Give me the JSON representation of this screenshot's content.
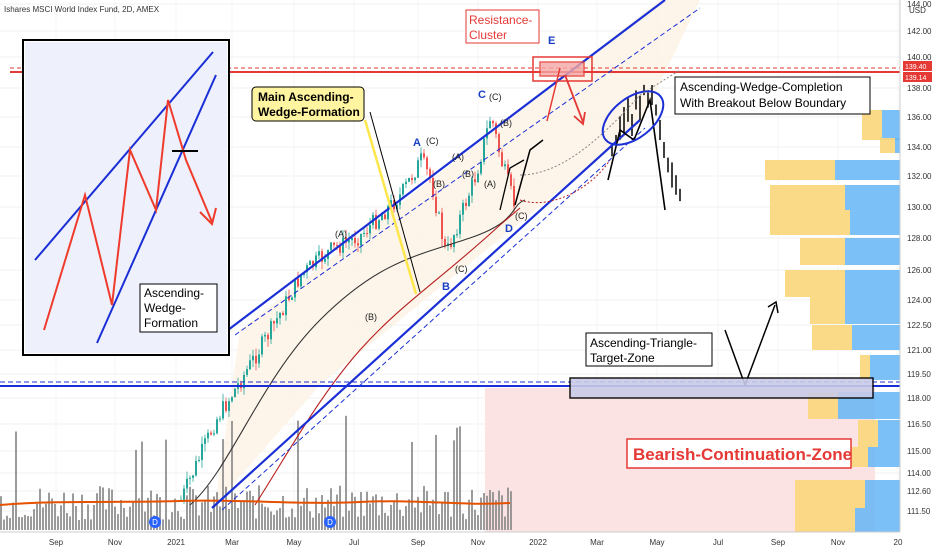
{
  "header": {
    "symbol_title": "Ishares MSCI World Index Fund, 2D, AMEX"
  },
  "colors": {
    "bull_candle": "#26a69a",
    "bear_candle": "#ef5350",
    "wedge_lines": "#1a2fd6",
    "resistance": "#e53935",
    "bearish_zone": "#fbe3e4",
    "target_zone": "#c9cbe8",
    "wedge_fill": "#fdf3e6",
    "annotation_red": "#e53935"
  },
  "chart_data": {
    "type": "candlestick",
    "title": "Ishares MSCI World Index Fund, 2D, AMEX",
    "currency": "USD",
    "x_tick_labels": [
      "Sep",
      "Nov",
      "2021",
      "Mar",
      "May",
      "Jul",
      "Sep",
      "Nov",
      "2022",
      "Mar",
      "May",
      "Jul",
      "Sep",
      "Nov",
      "20"
    ],
    "y_tick_labels": [
      "111.50",
      "112.60",
      "114.00",
      "115.00",
      "116.50",
      "118.00",
      "119.50",
      "121.00",
      "122.50",
      "124.00",
      "126.00",
      "128.00",
      "130.00",
      "132.00",
      "134.00",
      "136.00",
      "138.00",
      "140.00",
      "142.00",
      "144.00"
    ],
    "price_badges": [
      {
        "value": "139.40",
        "color": "#e53935"
      },
      {
        "value": "139.14",
        "color": "#e53935"
      }
    ],
    "ylim": [
      110.45,
      144.0
    ],
    "levels": {
      "resistance_cluster": 139.4,
      "resistance_cluster_2": 139.14,
      "target_zone_top": 119.1,
      "target_zone_bottom": 118.2,
      "blue_support_line": 118.9
    },
    "wave_labels": [
      "A",
      "(C)",
      "C",
      "(C)",
      "(B)",
      "(A)",
      "(B)",
      "(A)",
      "(B)",
      "(C)",
      "B",
      "D",
      "(C)",
      "E",
      "(A)",
      "(B)"
    ],
    "annotations": [
      {
        "text": "Resistance-Cluster",
        "lines": [
          "Resistance-",
          "Cluster"
        ]
      },
      {
        "text": "Main Ascending-Wedge-Formation",
        "lines": [
          "Main Ascending-",
          "Wedge-Formation"
        ]
      },
      {
        "text": "Ascending-Wedge-Completion With Breakout Below Boundary",
        "lines": [
          "Ascending-Wedge-Completion",
          "With Breakout Below Boundary"
        ]
      },
      {
        "text": "Ascending-Wedge-Formation",
        "lines": [
          "Ascending-",
          "Wedge-",
          "Formation"
        ]
      },
      {
        "text": "Ascending-Triangle-Target-Zone",
        "lines": [
          "Ascending-Triangle-",
          "Target-Zone"
        ]
      },
      {
        "text": "Bearish-Continuation-Zone",
        "lines": [
          "Bearish-Continuation-Zone"
        ]
      }
    ],
    "dividend_markers": [
      "D",
      "D"
    ],
    "grid": true,
    "legend": "none"
  }
}
